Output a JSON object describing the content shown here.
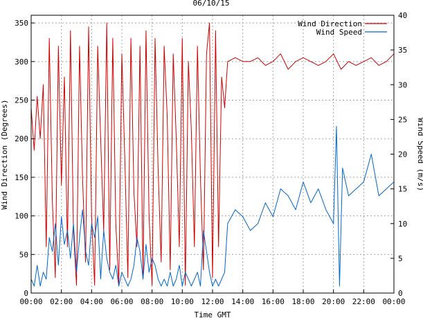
{
  "chart_data": {
    "type": "line",
    "title": "06/10/15",
    "xlabel": "Time GMT",
    "ylabel_left": "Wind Direction (Degrees)",
    "ylabel_right": "Wind Speed (m/s)",
    "x_tick_labels": [
      "00:00",
      "02:00",
      "04:00",
      "06:00",
      "08:00",
      "10:00",
      "12:00",
      "14:00",
      "16:00",
      "18:00",
      "20:00",
      "22:00",
      "00:00"
    ],
    "x_range_hours": [
      0,
      24
    ],
    "y_left": {
      "min": 0,
      "max": 360,
      "ticks": [
        0,
        50,
        100,
        150,
        200,
        250,
        300,
        350
      ]
    },
    "y_right": {
      "min": 0,
      "max": 40,
      "ticks": [
        0,
        5,
        10,
        15,
        20,
        25,
        30,
        35,
        40
      ]
    },
    "grid": true,
    "legend_position": "top-right",
    "series": [
      {
        "name": "Wind Direction",
        "axis": "left",
        "color": "#cc0000",
        "x_hours": [
          0,
          0.2,
          0.4,
          0.6,
          0.8,
          1.0,
          1.2,
          1.4,
          1.6,
          1.8,
          2.0,
          2.2,
          2.4,
          2.6,
          2.8,
          3.0,
          3.2,
          3.4,
          3.6,
          3.8,
          4.0,
          4.2,
          4.4,
          4.6,
          4.8,
          5.0,
          5.2,
          5.4,
          5.6,
          5.8,
          6.0,
          6.2,
          6.4,
          6.6,
          6.8,
          7.0,
          7.2,
          7.4,
          7.6,
          7.8,
          8.0,
          8.2,
          8.4,
          8.6,
          8.8,
          9.0,
          9.2,
          9.4,
          9.6,
          9.8,
          10.0,
          10.2,
          10.4,
          10.6,
          10.8,
          11.0,
          11.2,
          11.4,
          11.6,
          11.8,
          12.0,
          12.2,
          12.4,
          12.6,
          12.8,
          13.0,
          13.5,
          14.0,
          14.5,
          15.0,
          15.5,
          16.0,
          16.5,
          17.0,
          17.5,
          18.0,
          18.5,
          19.0,
          19.5,
          20.0,
          20.5,
          21.0,
          21.5,
          22.0,
          22.5,
          23.0,
          23.5,
          24.0
        ],
        "values": [
          240,
          185,
          255,
          200,
          270,
          60,
          330,
          120,
          20,
          320,
          140,
          280,
          60,
          340,
          80,
          10,
          320,
          150,
          40,
          345,
          100,
          10,
          320,
          200,
          80,
          350,
          30,
          330,
          90,
          10,
          310,
          170,
          20,
          330,
          130,
          60,
          320,
          20,
          340,
          100,
          10,
          330,
          160,
          40,
          320,
          230,
          30,
          310,
          200,
          60,
          330,
          10,
          300,
          210,
          60,
          320,
          150,
          30,
          310,
          350,
          20,
          340,
          60,
          280,
          240,
          300,
          305,
          300,
          300,
          305,
          295,
          300,
          310,
          290,
          300,
          305,
          300,
          295,
          300,
          310,
          290,
          300,
          295,
          300,
          305,
          295,
          300,
          310
        ],
        "label": "Wind Direction"
      },
      {
        "name": "Wind Speed",
        "axis": "right",
        "color": "#0066cc",
        "x_hours": [
          0,
          0.2,
          0.4,
          0.6,
          0.8,
          1.0,
          1.2,
          1.4,
          1.6,
          1.8,
          2.0,
          2.2,
          2.4,
          2.6,
          2.8,
          3.0,
          3.2,
          3.4,
          3.6,
          3.8,
          4.0,
          4.2,
          4.4,
          4.6,
          4.8,
          5.0,
          5.2,
          5.4,
          5.6,
          5.8,
          6.0,
          6.2,
          6.4,
          6.6,
          6.8,
          7.0,
          7.2,
          7.4,
          7.6,
          7.8,
          8.0,
          8.2,
          8.4,
          8.6,
          8.8,
          9.0,
          9.2,
          9.4,
          9.6,
          9.8,
          10.0,
          10.2,
          10.4,
          10.6,
          10.8,
          11.0,
          11.2,
          11.4,
          11.6,
          11.8,
          12.0,
          12.2,
          12.4,
          12.6,
          12.8,
          13.0,
          13.5,
          14.0,
          14.5,
          15.0,
          15.5,
          16.0,
          16.5,
          17.0,
          17.5,
          18.0,
          18.5,
          19.0,
          19.5,
          20.0,
          20.2,
          20.4,
          20.6,
          21.0,
          21.5,
          22.0,
          22.5,
          23.0,
          23.5,
          24.0
        ],
        "values": [
          2,
          1,
          4,
          1,
          3,
          2,
          8,
          6,
          10,
          4,
          11,
          7,
          9,
          5,
          10,
          3,
          8,
          12,
          6,
          4,
          10,
          8,
          11,
          2,
          9,
          5,
          3,
          2,
          4,
          1,
          3,
          2,
          1,
          2,
          4,
          8,
          6,
          2,
          7,
          3,
          5,
          4,
          2,
          1,
          2,
          1,
          3,
          1,
          2,
          4,
          1,
          3,
          2,
          1,
          2,
          3,
          1,
          9,
          6,
          3,
          1,
          2,
          1,
          2,
          3,
          10,
          12,
          11,
          9,
          10,
          13,
          11,
          15,
          14,
          12,
          16,
          13,
          15,
          12,
          10,
          24,
          1,
          18,
          14,
          15,
          16,
          20,
          14,
          15,
          16
        ],
        "label": "Wind Speed"
      }
    ]
  }
}
